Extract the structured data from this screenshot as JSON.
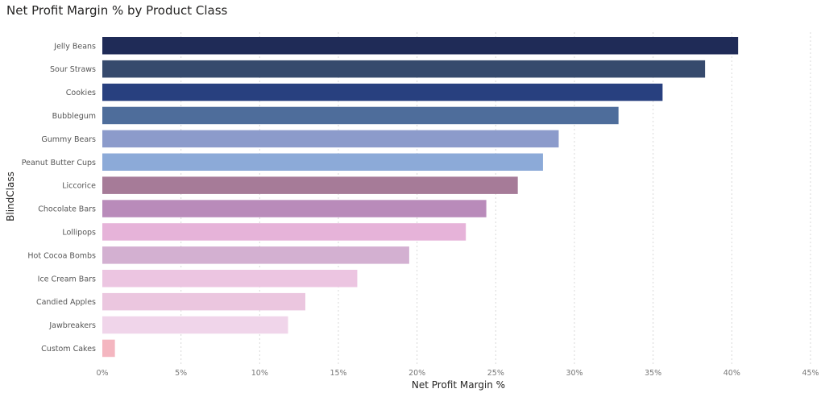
{
  "chart_data": {
    "type": "bar",
    "orientation": "horizontal",
    "title": "Net Profit Margin % by Product Class",
    "xlabel": "Net Profit Margin %",
    "ylabel": "BlindClass",
    "xlim": [
      0,
      45
    ],
    "x_ticks": [
      "0%",
      "5%",
      "10%",
      "15%",
      "20%",
      "25%",
      "30%",
      "35%",
      "40%",
      "45%"
    ],
    "grid": true,
    "categories": [
      "Jelly Beans",
      "Sour Straws",
      "Cookies",
      "Bubblegum",
      "Gummy Bears",
      "Peanut Butter Cups",
      "Liccorice",
      "Chocolate Bars",
      "Lollipops",
      "Hot Cocoa Bombs",
      "Ice Cream Bars",
      "Candied Apples",
      "Jawbreakers",
      "Custom Cakes"
    ],
    "values": [
      40.4,
      38.3,
      35.6,
      32.8,
      29.0,
      28.0,
      26.4,
      24.4,
      23.1,
      19.5,
      16.2,
      12.9,
      11.8,
      0.8
    ],
    "colors": [
      "#1f2b57",
      "#364a6d",
      "#28407f",
      "#4e6d9b",
      "#8c9bcb",
      "#8caad8",
      "#a67b98",
      "#b98bba",
      "#e6b3d9",
      "#d3b0d1",
      "#ecc5e1",
      "#ebc6df",
      "#f0d5ea",
      "#f4b6c0"
    ]
  }
}
